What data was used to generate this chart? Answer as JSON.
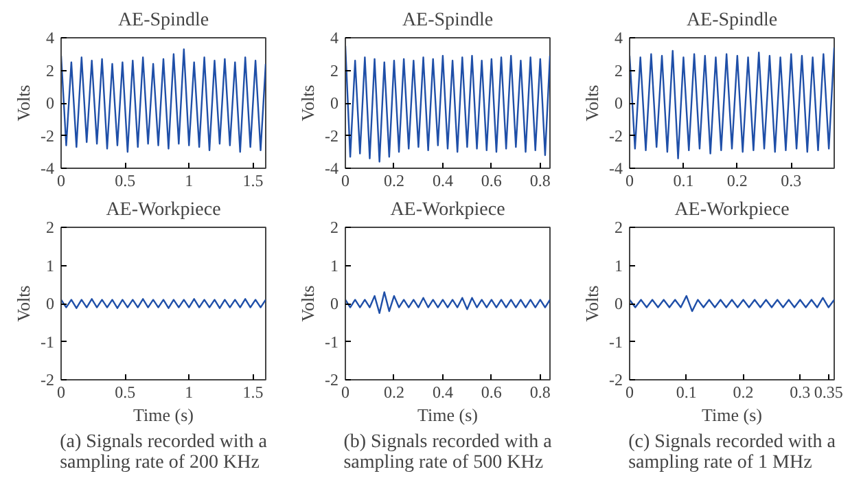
{
  "chart_data": [
    {
      "type": "line",
      "title": "AE-Spindle",
      "ylabel": "Volts",
      "xlim": [
        0,
        1.6
      ],
      "xticks": [
        0,
        0.5,
        1,
        1.5
      ],
      "ylim": [
        -4,
        4
      ],
      "yticks": [
        -4,
        -2,
        0,
        2,
        4
      ],
      "grid": false,
      "x": [
        0,
        0.04,
        0.08,
        0.12,
        0.16,
        0.2,
        0.24,
        0.28,
        0.32,
        0.36,
        0.4,
        0.44,
        0.48,
        0.52,
        0.56,
        0.6,
        0.64,
        0.68,
        0.72,
        0.76,
        0.8,
        0.84,
        0.88,
        0.92,
        0.96,
        1.0,
        1.04,
        1.08,
        1.12,
        1.16,
        1.2,
        1.24,
        1.28,
        1.32,
        1.36,
        1.4,
        1.44,
        1.48,
        1.52,
        1.56,
        1.6
      ],
      "series": [
        {
          "color": "#1f4fa8",
          "values": [
            2.9,
            -2.6,
            2.5,
            -2.7,
            2.8,
            -2.4,
            2.6,
            -2.5,
            2.7,
            -2.8,
            2.4,
            -2.6,
            2.5,
            -3.0,
            2.6,
            -2.7,
            2.8,
            -2.5,
            2.4,
            -2.6,
            2.7,
            -2.8,
            3.0,
            -2.5,
            3.3,
            -2.6,
            2.5,
            -2.7,
            2.8,
            -2.9,
            2.6,
            -2.5,
            2.7,
            -2.6,
            2.5,
            -3.0,
            2.8,
            -2.7,
            2.6,
            -2.9,
            2.4
          ]
        }
      ]
    },
    {
      "type": "line",
      "title": "AE-Spindle",
      "ylabel": "Volts",
      "xlim": [
        0,
        0.84
      ],
      "xticks": [
        0,
        0.2,
        0.4,
        0.6,
        0.8
      ],
      "ylim": [
        -4,
        4
      ],
      "yticks": [
        -4,
        -2,
        0,
        2,
        4
      ],
      "grid": false,
      "x": [
        0,
        0.02,
        0.04,
        0.06,
        0.08,
        0.1,
        0.12,
        0.14,
        0.16,
        0.18,
        0.2,
        0.22,
        0.24,
        0.26,
        0.28,
        0.3,
        0.32,
        0.34,
        0.36,
        0.38,
        0.4,
        0.42,
        0.44,
        0.46,
        0.48,
        0.5,
        0.52,
        0.54,
        0.56,
        0.58,
        0.6,
        0.62,
        0.64,
        0.66,
        0.68,
        0.7,
        0.72,
        0.74,
        0.76,
        0.78,
        0.8,
        0.82,
        0.84
      ],
      "series": [
        {
          "color": "#1f4fa8",
          "values": [
            3.5,
            -3.3,
            2.6,
            -3.1,
            2.8,
            -3.4,
            2.7,
            -3.6,
            2.5,
            -3.3,
            2.6,
            -3.0,
            2.7,
            -2.8,
            2.6,
            -2.7,
            2.8,
            -2.9,
            2.7,
            -2.6,
            2.9,
            -2.8,
            2.6,
            -3.0,
            2.8,
            -2.7,
            2.9,
            -2.8,
            2.6,
            -2.9,
            2.7,
            -3.0,
            2.8,
            -2.8,
            2.9,
            -2.7,
            2.6,
            -3.0,
            2.8,
            -2.9,
            2.7,
            -3.2,
            2.9
          ]
        }
      ]
    },
    {
      "type": "line",
      "title": "AE-Spindle",
      "ylabel": "Volts",
      "xlim": [
        0,
        0.38
      ],
      "xticks": [
        0,
        0.1,
        0.2,
        0.3
      ],
      "ylim": [
        -4,
        4
      ],
      "yticks": [
        -4,
        -2,
        0,
        2,
        4
      ],
      "grid": false,
      "x": [
        0,
        0.01,
        0.02,
        0.03,
        0.04,
        0.05,
        0.06,
        0.07,
        0.08,
        0.09,
        0.1,
        0.11,
        0.12,
        0.13,
        0.14,
        0.15,
        0.16,
        0.17,
        0.18,
        0.19,
        0.2,
        0.21,
        0.22,
        0.23,
        0.24,
        0.25,
        0.26,
        0.27,
        0.28,
        0.29,
        0.3,
        0.31,
        0.32,
        0.33,
        0.34,
        0.35,
        0.36,
        0.37,
        0.38
      ],
      "series": [
        {
          "color": "#1f4fa8",
          "values": [
            2.9,
            -2.8,
            2.8,
            -2.9,
            3.0,
            -2.7,
            2.9,
            -3.0,
            3.2,
            -3.4,
            2.8,
            -2.9,
            3.0,
            -2.8,
            2.9,
            -3.1,
            2.8,
            -2.9,
            3.0,
            -2.8,
            2.9,
            -3.0,
            2.8,
            -2.9,
            3.1,
            -2.8,
            2.9,
            -3.0,
            2.8,
            -2.9,
            3.0,
            -2.8,
            2.9,
            -3.0,
            2.8,
            -2.9,
            3.0,
            -2.8,
            3.4
          ]
        }
      ]
    },
    {
      "type": "line",
      "title": "AE-Workpiece",
      "xlabel": "Time (s)",
      "ylabel": "Volts",
      "xlim": [
        0,
        1.6
      ],
      "xticks": [
        0,
        0.5,
        1,
        1.5
      ],
      "ylim": [
        -2,
        2
      ],
      "yticks": [
        -2,
        -1,
        0,
        1,
        2
      ],
      "grid": false,
      "annotations": [
        "(a) Signals recorded with a sampling rate of 200 KHz"
      ],
      "x": [
        0,
        0.04,
        0.08,
        0.12,
        0.16,
        0.2,
        0.24,
        0.28,
        0.32,
        0.36,
        0.4,
        0.44,
        0.48,
        0.52,
        0.56,
        0.6,
        0.64,
        0.68,
        0.72,
        0.76,
        0.8,
        0.84,
        0.88,
        0.92,
        0.96,
        1.0,
        1.04,
        1.08,
        1.12,
        1.16,
        1.2,
        1.24,
        1.28,
        1.32,
        1.36,
        1.4,
        1.44,
        1.48,
        1.52,
        1.56,
        1.6
      ],
      "series": [
        {
          "color": "#1f4fa8",
          "values": [
            0.1,
            -0.1,
            0.1,
            -0.12,
            0.1,
            -0.1,
            0.12,
            -0.1,
            0.1,
            -0.1,
            0.1,
            -0.12,
            0.1,
            -0.1,
            0.1,
            -0.1,
            0.12,
            -0.1,
            0.1,
            -0.1,
            0.1,
            -0.12,
            0.1,
            -0.1,
            0.1,
            -0.1,
            0.12,
            -0.1,
            0.1,
            -0.1,
            0.1,
            -0.12,
            0.1,
            -0.1,
            0.1,
            -0.1,
            0.12,
            -0.1,
            0.1,
            -0.1,
            0.1
          ]
        }
      ]
    },
    {
      "type": "line",
      "title": "AE-Workpiece",
      "xlabel": "Time (s)",
      "ylabel": "Volts",
      "xlim": [
        0,
        0.84
      ],
      "xticks": [
        0,
        0.2,
        0.4,
        0.6,
        0.8
      ],
      "ylim": [
        -2,
        2
      ],
      "yticks": [
        -2,
        -1,
        0,
        1,
        2
      ],
      "grid": false,
      "annotations": [
        "(b) Signals recorded with a sampling rate of 500 KHz"
      ],
      "x": [
        0,
        0.02,
        0.04,
        0.06,
        0.08,
        0.1,
        0.12,
        0.14,
        0.16,
        0.18,
        0.2,
        0.22,
        0.24,
        0.26,
        0.28,
        0.3,
        0.32,
        0.34,
        0.36,
        0.38,
        0.4,
        0.42,
        0.44,
        0.46,
        0.48,
        0.5,
        0.52,
        0.54,
        0.56,
        0.58,
        0.6,
        0.62,
        0.64,
        0.66,
        0.68,
        0.7,
        0.72,
        0.74,
        0.76,
        0.78,
        0.8,
        0.82,
        0.84
      ],
      "series": [
        {
          "color": "#1f4fa8",
          "values": [
            0.1,
            -0.1,
            0.1,
            -0.1,
            0.1,
            -0.1,
            0.2,
            -0.25,
            0.3,
            -0.2,
            0.2,
            -0.1,
            0.1,
            -0.1,
            0.1,
            -0.1,
            0.15,
            -0.1,
            0.1,
            -0.1,
            0.1,
            -0.1,
            0.1,
            -0.1,
            0.15,
            -0.15,
            0.15,
            -0.1,
            0.1,
            -0.1,
            0.1,
            -0.1,
            0.1,
            -0.1,
            0.1,
            -0.1,
            0.1,
            -0.1,
            0.1,
            -0.1,
            0.1,
            -0.1,
            0.1
          ]
        }
      ]
    },
    {
      "type": "line",
      "title": "AE-Workpiece",
      "xlabel": "Time (s)",
      "ylabel": "Volts",
      "xlim": [
        0,
        0.36
      ],
      "xticks": [
        0,
        0.1,
        0.2,
        0.3,
        0.35
      ],
      "ylim": [
        -2,
        2
      ],
      "yticks": [
        -2,
        -1,
        0,
        1,
        2
      ],
      "grid": false,
      "annotations": [
        "(c) Signals recorded with a sampling rate of 1 MHz"
      ],
      "x": [
        0,
        0.01,
        0.02,
        0.03,
        0.04,
        0.05,
        0.06,
        0.07,
        0.08,
        0.09,
        0.1,
        0.11,
        0.12,
        0.13,
        0.14,
        0.15,
        0.16,
        0.17,
        0.18,
        0.19,
        0.2,
        0.21,
        0.22,
        0.23,
        0.24,
        0.25,
        0.26,
        0.27,
        0.28,
        0.29,
        0.3,
        0.31,
        0.32,
        0.33,
        0.34,
        0.35,
        0.36
      ],
      "series": [
        {
          "color": "#1f4fa8",
          "values": [
            0.1,
            -0.1,
            0.1,
            -0.1,
            0.1,
            -0.1,
            0.1,
            -0.1,
            0.1,
            -0.1,
            0.2,
            -0.2,
            0.1,
            -0.1,
            0.1,
            -0.1,
            0.1,
            -0.1,
            0.1,
            -0.1,
            0.1,
            -0.1,
            0.1,
            -0.1,
            0.1,
            -0.1,
            0.1,
            -0.1,
            0.1,
            -0.1,
            0.1,
            -0.1,
            0.1,
            -0.1,
            0.15,
            -0.1,
            0.1
          ]
        }
      ]
    }
  ]
}
